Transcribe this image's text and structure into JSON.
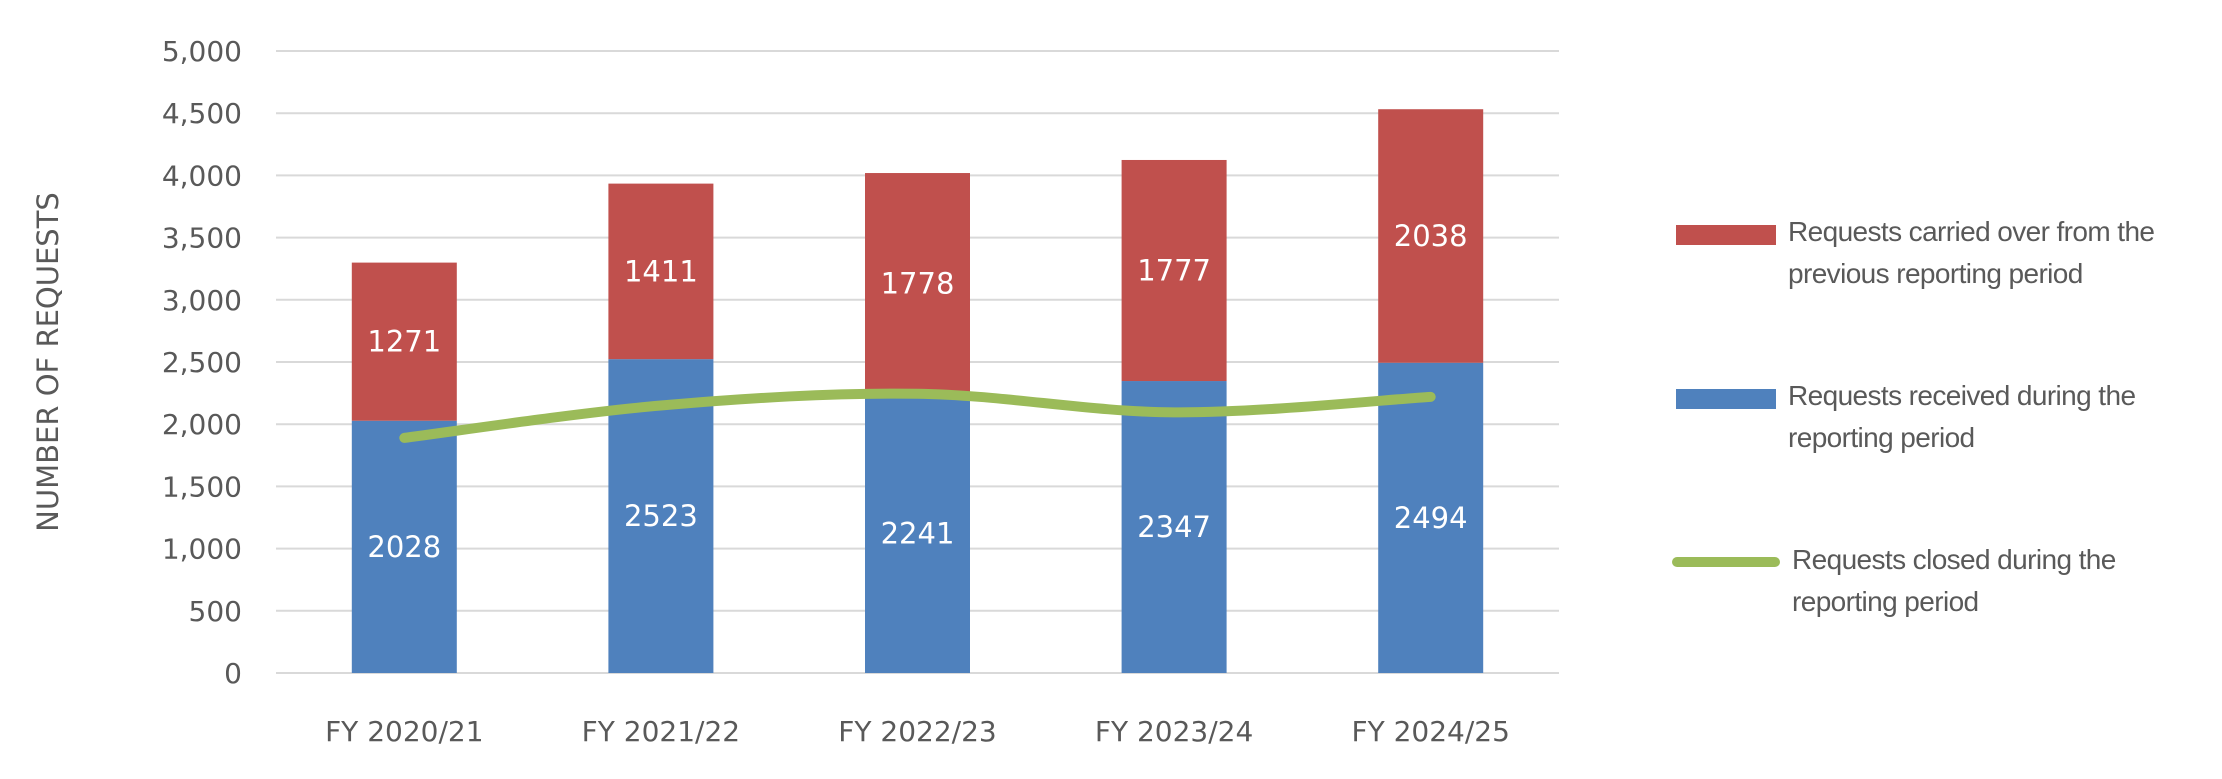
{
  "chart_data": {
    "type": "bar",
    "stacked": true,
    "categories": [
      "FY 2020/21",
      "FY 2021/22",
      "FY 2022/23",
      "FY 2023/24",
      "FY 2024/25"
    ],
    "ylabel": "NUMBER OF REQUESTS",
    "xlabel": "",
    "ylim": [
      0,
      5000
    ],
    "yticks": [
      "0",
      "500",
      "1,000",
      "1,500",
      "2,000",
      "2,500",
      "3,000",
      "3,500",
      "4,000",
      "4,500",
      "5,000"
    ],
    "grid": true,
    "legend_position": "right",
    "series": [
      {
        "name": "Requests received during the reporting period",
        "type": "bar",
        "color": "#4f81bd",
        "values": [
          2028,
          2523,
          2241,
          2347,
          2494
        ]
      },
      {
        "name": "Requests carried over from the previous reporting period",
        "type": "bar",
        "color": "#c0504d",
        "values": [
          1271,
          1411,
          1778,
          1777,
          2038
        ]
      },
      {
        "name": "Requests closed during the reporting period",
        "type": "line",
        "smooth": true,
        "color": "#9bbb59",
        "values": [
          1890,
          2150,
          2245,
          2095,
          2220
        ]
      }
    ]
  }
}
